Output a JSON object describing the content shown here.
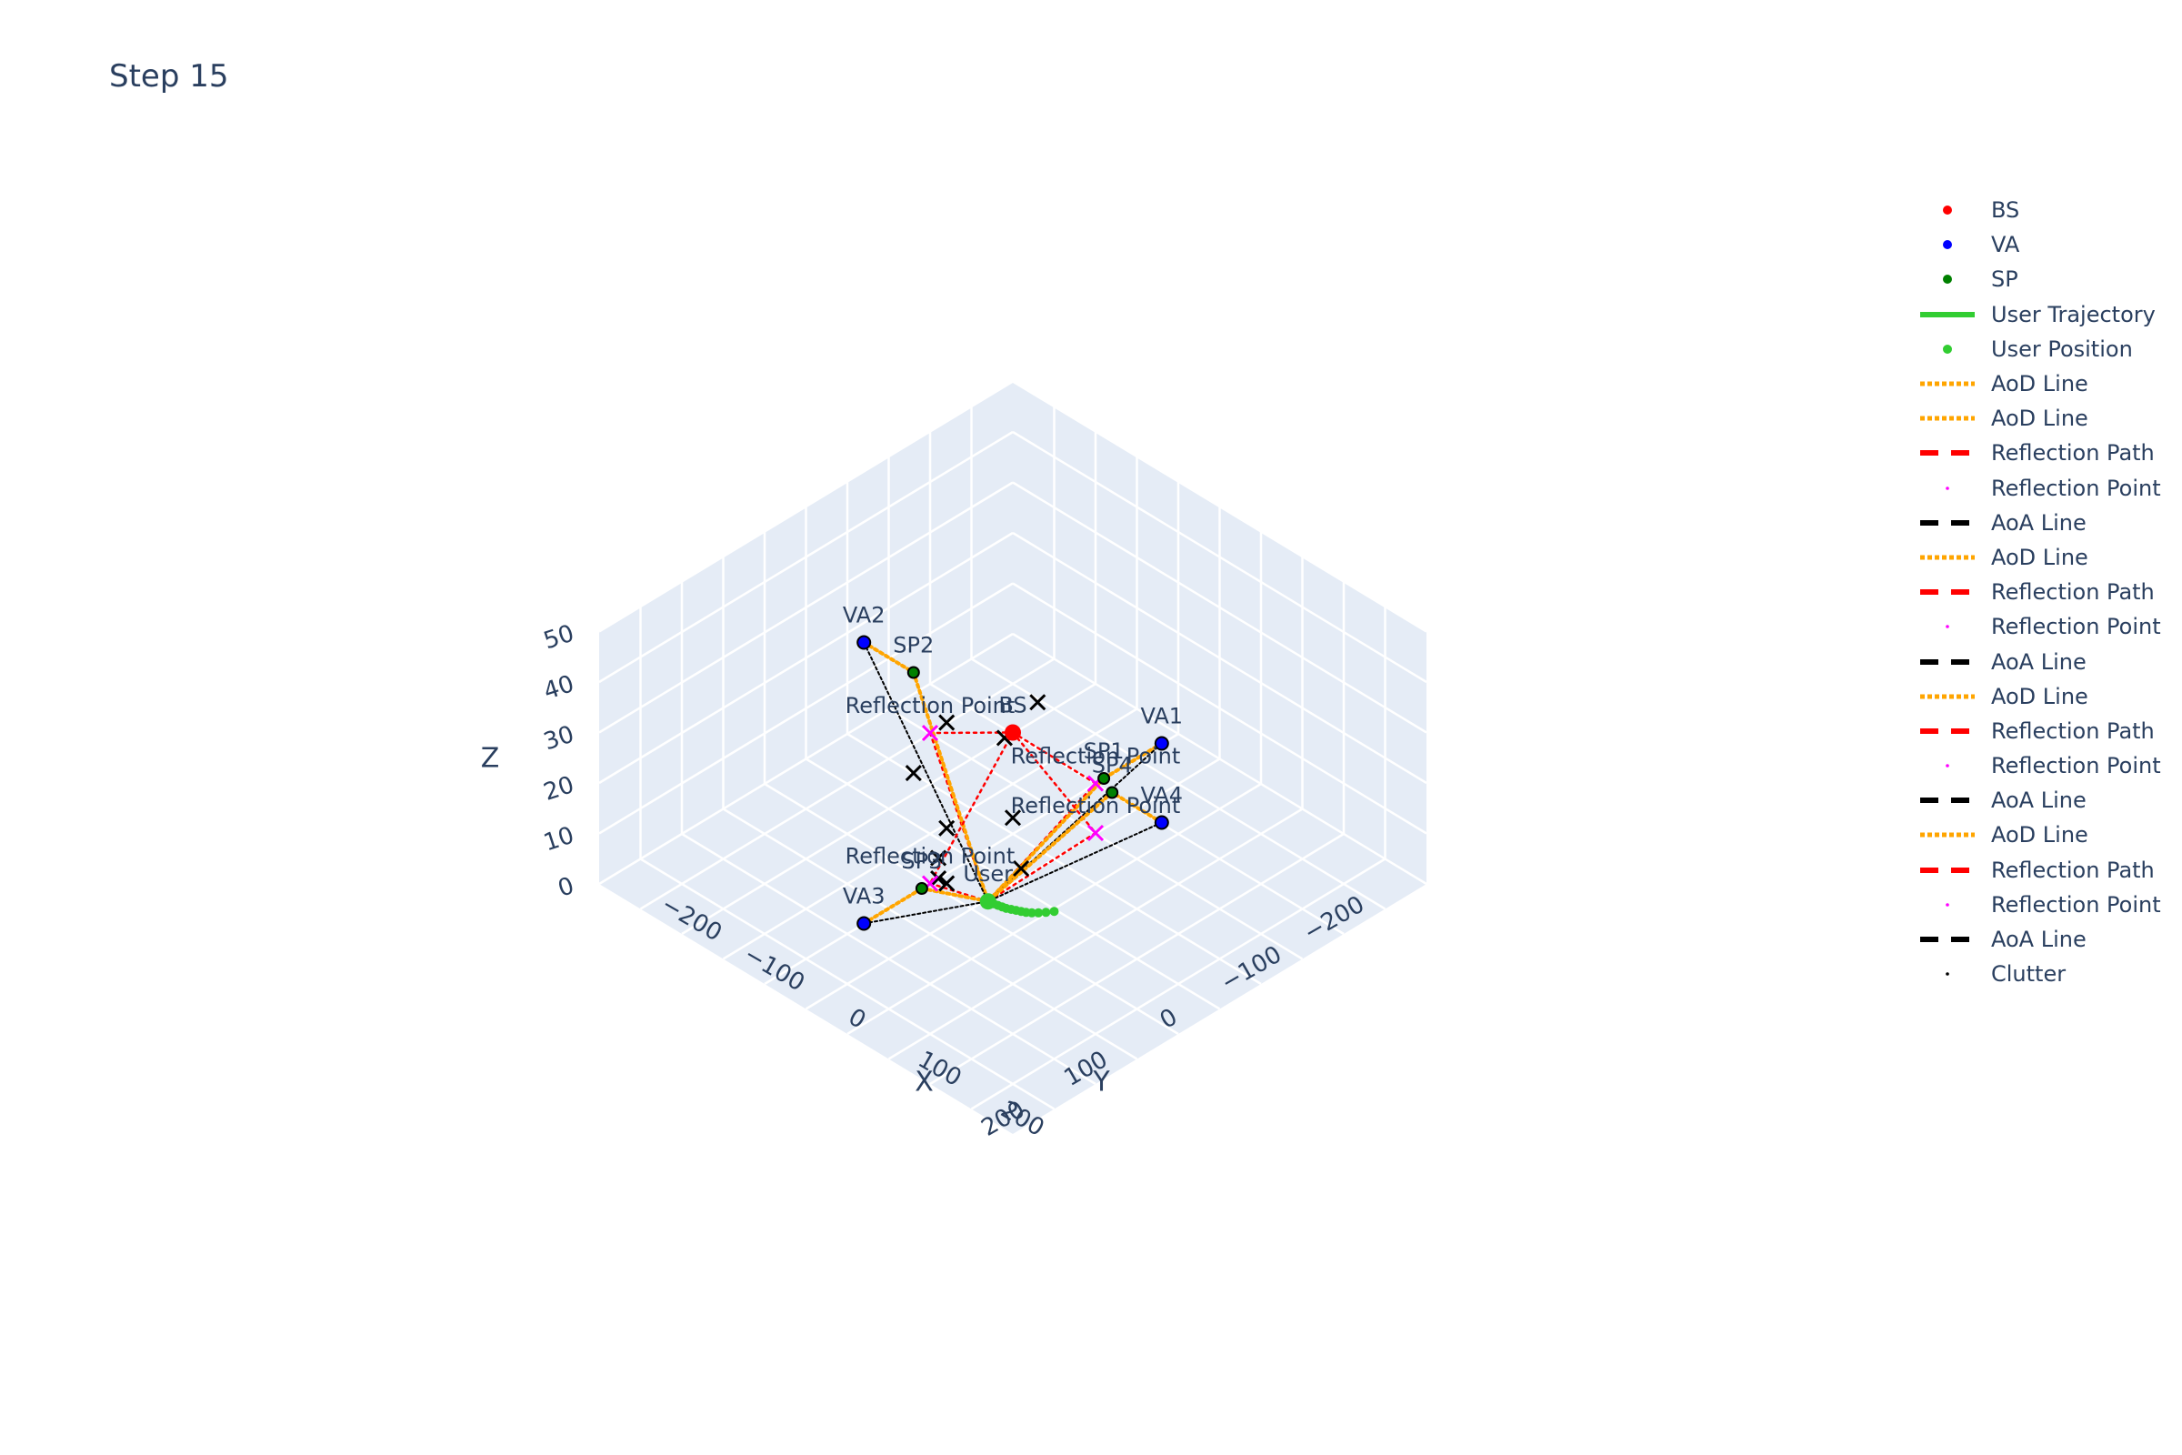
{
  "title": "Step 15",
  "chart_data": {
    "type": "scatter3d",
    "title": "Step 15",
    "axes": {
      "x": {
        "label": "X",
        "range": [
          -250,
          250
        ],
        "ticks": [
          -200,
          -100,
          0,
          100,
          200
        ]
      },
      "y": {
        "label": "Y",
        "range": [
          -250,
          250
        ],
        "ticks": [
          -200,
          -100,
          0,
          100,
          200
        ]
      },
      "z": {
        "label": "Z",
        "range": [
          0,
          50
        ],
        "ticks": [
          0,
          10,
          20,
          30,
          40,
          50
        ]
      }
    },
    "tick_text": {
      "x": [
        "−200",
        "−100",
        "0",
        "100",
        "200"
      ],
      "y": [
        "−200",
        "−100",
        "0",
        "100",
        "200"
      ],
      "z": [
        "0",
        "10",
        "20",
        "30",
        "40",
        "50"
      ]
    },
    "bs": {
      "label": "BS",
      "pos": [
        0,
        0,
        30
      ]
    },
    "virtual_anchors": [
      {
        "label": "VA1",
        "pos": [
          0,
          -180,
          10
        ]
      },
      {
        "label": "VA2",
        "pos": [
          -180,
          0,
          30
        ]
      },
      {
        "label": "VA3",
        "pos": [
          0,
          180,
          10
        ]
      },
      {
        "label": "VA4",
        "pos": [
          180,
          0,
          30
        ]
      }
    ],
    "scattering_points": [
      {
        "label": "SP1",
        "pos": [
          0,
          -110,
          10
        ]
      },
      {
        "label": "SP2",
        "pos": [
          -120,
          0,
          30
        ]
      },
      {
        "label": "SP3",
        "pos": [
          0,
          110,
          10
        ]
      },
      {
        "label": "SP4",
        "pos": [
          120,
          0,
          30
        ]
      }
    ],
    "user": {
      "label": "User",
      "pos": [
        10,
        40,
        1.5
      ]
    },
    "user_trajectory": [
      [
        60,
        10,
        1.5
      ],
      [
        56,
        16,
        1.5
      ],
      [
        52,
        21,
        1.5
      ],
      [
        48,
        25,
        1.5
      ],
      [
        44,
        28,
        1.5
      ],
      [
        40,
        30,
        1.5
      ],
      [
        36,
        32,
        1.5
      ],
      [
        32,
        34,
        1.5
      ],
      [
        28,
        36,
        1.5
      ],
      [
        24,
        37,
        1.5
      ],
      [
        20,
        38,
        1.5
      ],
      [
        16,
        39,
        1.5
      ],
      [
        13,
        40,
        1.5
      ],
      [
        10,
        40,
        1.5
      ]
    ],
    "reflection_points": [
      {
        "label": "Reflection Point",
        "pos": [
          0,
          -100,
          10
        ]
      },
      {
        "label": "Reflection Point",
        "pos": [
          -100,
          0,
          20
        ]
      },
      {
        "label": "Reflection Point",
        "pos": [
          0,
          100,
          10
        ]
      },
      {
        "label": "Reflection Point",
        "pos": [
          100,
          0,
          20
        ]
      }
    ],
    "clutter": [
      [
        30,
        120,
        20
      ],
      [
        -20,
        60,
        15
      ],
      [
        40,
        30,
        10
      ],
      [
        -60,
        20,
        28
      ],
      [
        10,
        -20,
        35
      ],
      [
        -10,
        80,
        8
      ],
      [
        60,
        60,
        25
      ],
      [
        -40,
        -30,
        22
      ],
      [
        20,
        100,
        12
      ],
      [
        -80,
        40,
        18
      ]
    ],
    "colors": {
      "bs": "#ff0000",
      "va": "#0000ff",
      "sp": "#008000",
      "trajectory": "#32cd32",
      "aod": "#ffa500",
      "reflection": "#ff0000",
      "reflection_point": "#ff00ff",
      "aoa": "#000000",
      "clutter": "#000000",
      "scene_bg": "#e5ecf6",
      "grid": "#ffffff",
      "text": "#2a3f5f"
    },
    "legend": {
      "position": "top-right",
      "items": [
        {
          "label": "BS",
          "kind": "marker",
          "color": "#ff0000"
        },
        {
          "label": "VA",
          "kind": "marker",
          "color": "#0000ff"
        },
        {
          "label": "SP",
          "kind": "marker",
          "color": "#008000"
        },
        {
          "label": "User Trajectory",
          "kind": "line",
          "color": "#32cd32"
        },
        {
          "label": "User Position",
          "kind": "marker",
          "color": "#32cd32"
        },
        {
          "label": "AoD Line",
          "kind": "dot",
          "color": "#ffa500"
        },
        {
          "label": "AoD Line",
          "kind": "dot",
          "color": "#ffa500"
        },
        {
          "label": "Reflection Path",
          "kind": "dash",
          "color": "#ff0000"
        },
        {
          "label": "Reflection Point",
          "kind": "tiny",
          "color": "#ff00ff"
        },
        {
          "label": "AoA Line",
          "kind": "dash",
          "color": "#000000"
        },
        {
          "label": "AoD Line",
          "kind": "dot",
          "color": "#ffa500"
        },
        {
          "label": "Reflection Path",
          "kind": "dash",
          "color": "#ff0000"
        },
        {
          "label": "Reflection Point",
          "kind": "tiny",
          "color": "#ff00ff"
        },
        {
          "label": "AoA Line",
          "kind": "dash",
          "color": "#000000"
        },
        {
          "label": "AoD Line",
          "kind": "dot",
          "color": "#ffa500"
        },
        {
          "label": "Reflection Path",
          "kind": "dash",
          "color": "#ff0000"
        },
        {
          "label": "Reflection Point",
          "kind": "tiny",
          "color": "#ff00ff"
        },
        {
          "label": "AoA Line",
          "kind": "dash",
          "color": "#000000"
        },
        {
          "label": "AoD Line",
          "kind": "dot",
          "color": "#ffa500"
        },
        {
          "label": "Reflection Path",
          "kind": "dash",
          "color": "#ff0000"
        },
        {
          "label": "Reflection Point",
          "kind": "tiny",
          "color": "#ff00ff"
        },
        {
          "label": "AoA Line",
          "kind": "dash",
          "color": "#000000"
        },
        {
          "label": "Clutter",
          "kind": "tiny",
          "color": "#000000"
        }
      ]
    }
  }
}
